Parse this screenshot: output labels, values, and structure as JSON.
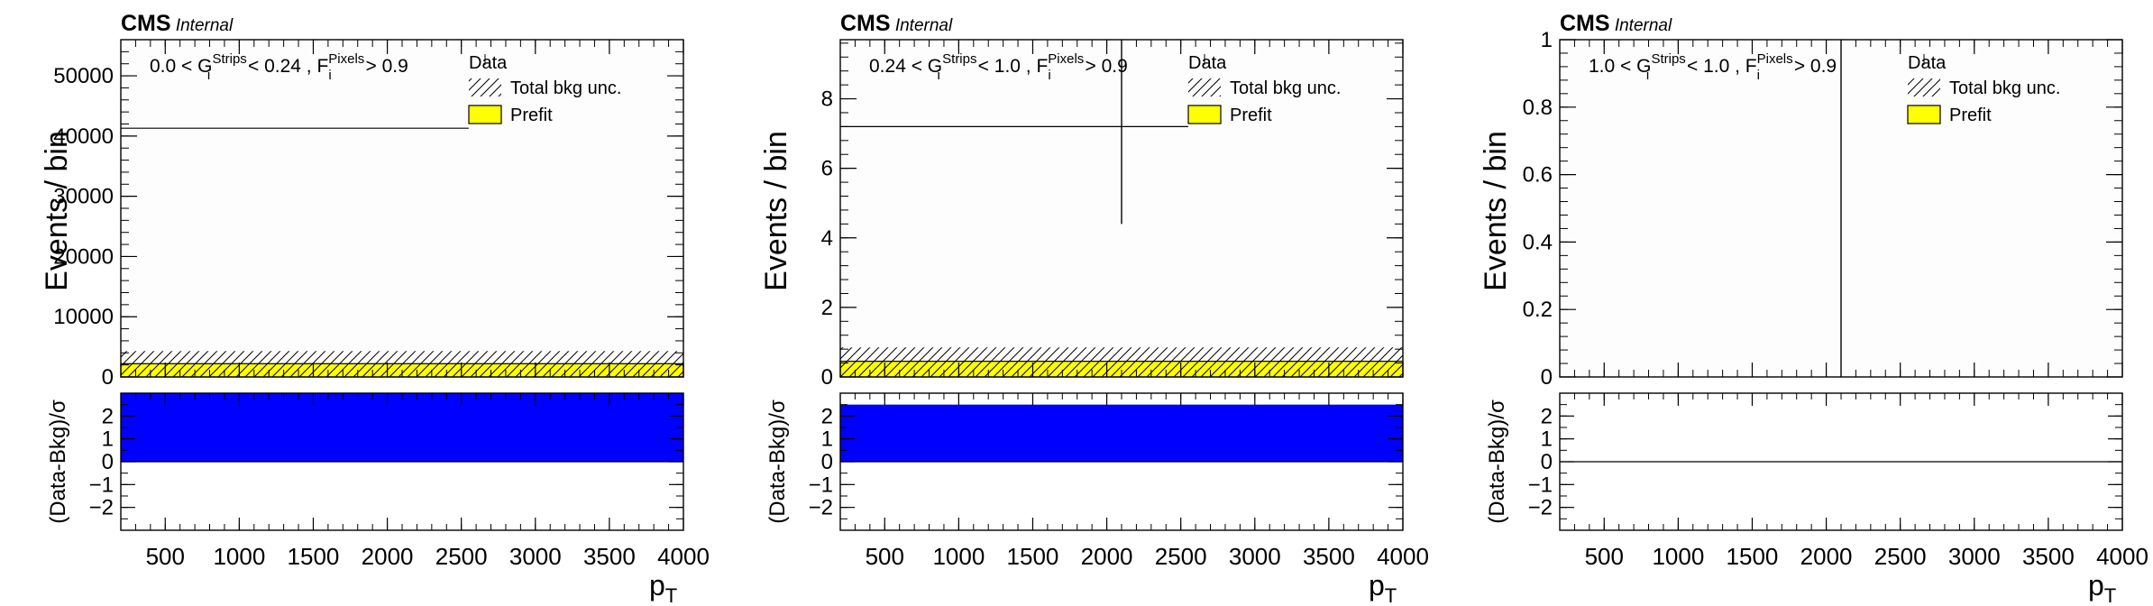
{
  "experiment_label": "CMS",
  "status_label": "Internal",
  "x_axis_label": "p",
  "x_axis_label_sub": "T",
  "legend": {
    "data": "Data",
    "total_unc": "Total bkg unc.",
    "prefit": "Prefit"
  },
  "colors": {
    "prefit_fill": "#ffff00",
    "pull_fill": "#0000ff",
    "frame": "#000000"
  },
  "chart_data": [
    {
      "type": "bar",
      "cut_label": {
        "g_low": "0.0 < G",
        "g_sup": "Strips",
        "g_sub": "i",
        "g_high": " < 0.24 , F",
        "f_sup": "Pixels",
        "f_sub": "i",
        "f_tail": " > 0.9"
      },
      "top": {
        "ylabel": "Events / bin",
        "ylim": [
          0,
          56000
        ],
        "yticks": [
          0,
          10000,
          20000,
          30000,
          40000,
          50000
        ],
        "ytick_labels": [
          "0",
          "10000",
          "20000",
          "30000",
          "40000",
          "50000"
        ],
        "data_x": [
          200,
          2550
        ],
        "data_y": 41300,
        "data_marker_x": 2100,
        "data_err_low": 41300,
        "data_err_high": 41300,
        "prefit_value": 2200,
        "total_unc_band": [
          0,
          4300
        ]
      },
      "bottom": {
        "ylabel": "(Data-Bkg)/σ",
        "ylim": [
          -3,
          3
        ],
        "yticks": [
          -2,
          -1,
          0,
          1,
          2
        ],
        "ytick_labels": [
          "−2",
          "−1",
          "0",
          "1",
          "2"
        ],
        "pull_value": 3.0
      },
      "xlim": [
        200,
        4000
      ],
      "xticks": [
        500,
        1000,
        1500,
        2000,
        2500,
        3000,
        3500,
        4000
      ],
      "xtick_labels": [
        "500",
        "1000",
        "1500",
        "2000",
        "2500",
        "3000",
        "3500",
        "4000"
      ]
    },
    {
      "type": "bar",
      "cut_label": {
        "g_low": "0.24 < G",
        "g_sup": "Strips",
        "g_sub": "i",
        "g_high": " < 1.0 , F",
        "f_sup": "Pixels",
        "f_sub": "i",
        "f_tail": " > 0.9"
      },
      "top": {
        "ylabel": "Events / bin",
        "ylim": [
          0,
          9.7
        ],
        "yticks": [
          0,
          2,
          4,
          6,
          8
        ],
        "ytick_labels": [
          "0",
          "2",
          "4",
          "6",
          "8"
        ],
        "data_x": [
          200,
          2550
        ],
        "data_y": 7.2,
        "data_marker_x": 2100,
        "data_err_low": 4.4,
        "data_err_high": 9.7,
        "prefit_value": 0.45,
        "total_unc_band": [
          0,
          0.85
        ]
      },
      "bottom": {
        "ylabel": "(Data-Bkg)/σ",
        "ylim": [
          -3,
          3
        ],
        "yticks": [
          -2,
          -1,
          0,
          1,
          2
        ],
        "ytick_labels": [
          "−2",
          "−1",
          "0",
          "1",
          "2"
        ],
        "pull_value": 2.5
      },
      "xlim": [
        200,
        4000
      ],
      "xticks": [
        500,
        1000,
        1500,
        2000,
        2500,
        3000,
        3500,
        4000
      ],
      "xtick_labels": [
        "500",
        "1000",
        "1500",
        "2000",
        "2500",
        "3000",
        "3500",
        "4000"
      ]
    },
    {
      "type": "bar",
      "cut_label": {
        "g_low": "1.0 < G",
        "g_sup": "Strips",
        "g_sub": "i",
        "g_high": " < 1.0 , F",
        "f_sup": "Pixels",
        "f_sub": "i",
        "f_tail": " > 0.9"
      },
      "top": {
        "ylabel": "Events / bin",
        "ylim": [
          0,
          1
        ],
        "yticks": [
          0,
          0.2,
          0.4,
          0.6,
          0.8,
          1
        ],
        "ytick_labels": [
          "0",
          "0.2",
          "0.4",
          "0.6",
          "0.8",
          "1"
        ],
        "data_x": null,
        "data_y": null,
        "data_marker_x": 2100,
        "data_err_low": 0,
        "data_err_high": 1,
        "prefit_value": 0,
        "total_unc_band": [
          0,
          0
        ]
      },
      "bottom": {
        "ylabel": "(Data-Bkg)/σ",
        "ylim": [
          -3,
          3
        ],
        "yticks": [
          -2,
          -1,
          0,
          1,
          2
        ],
        "ytick_labels": [
          "−2",
          "−1",
          "0",
          "1",
          "2"
        ],
        "pull_value": 0
      },
      "xlim": [
        200,
        4000
      ],
      "xticks": [
        500,
        1000,
        1500,
        2000,
        2500,
        3000,
        3500,
        4000
      ],
      "xtick_labels": [
        "500",
        "1000",
        "1500",
        "2000",
        "2500",
        "3000",
        "3500",
        "4000"
      ]
    }
  ]
}
